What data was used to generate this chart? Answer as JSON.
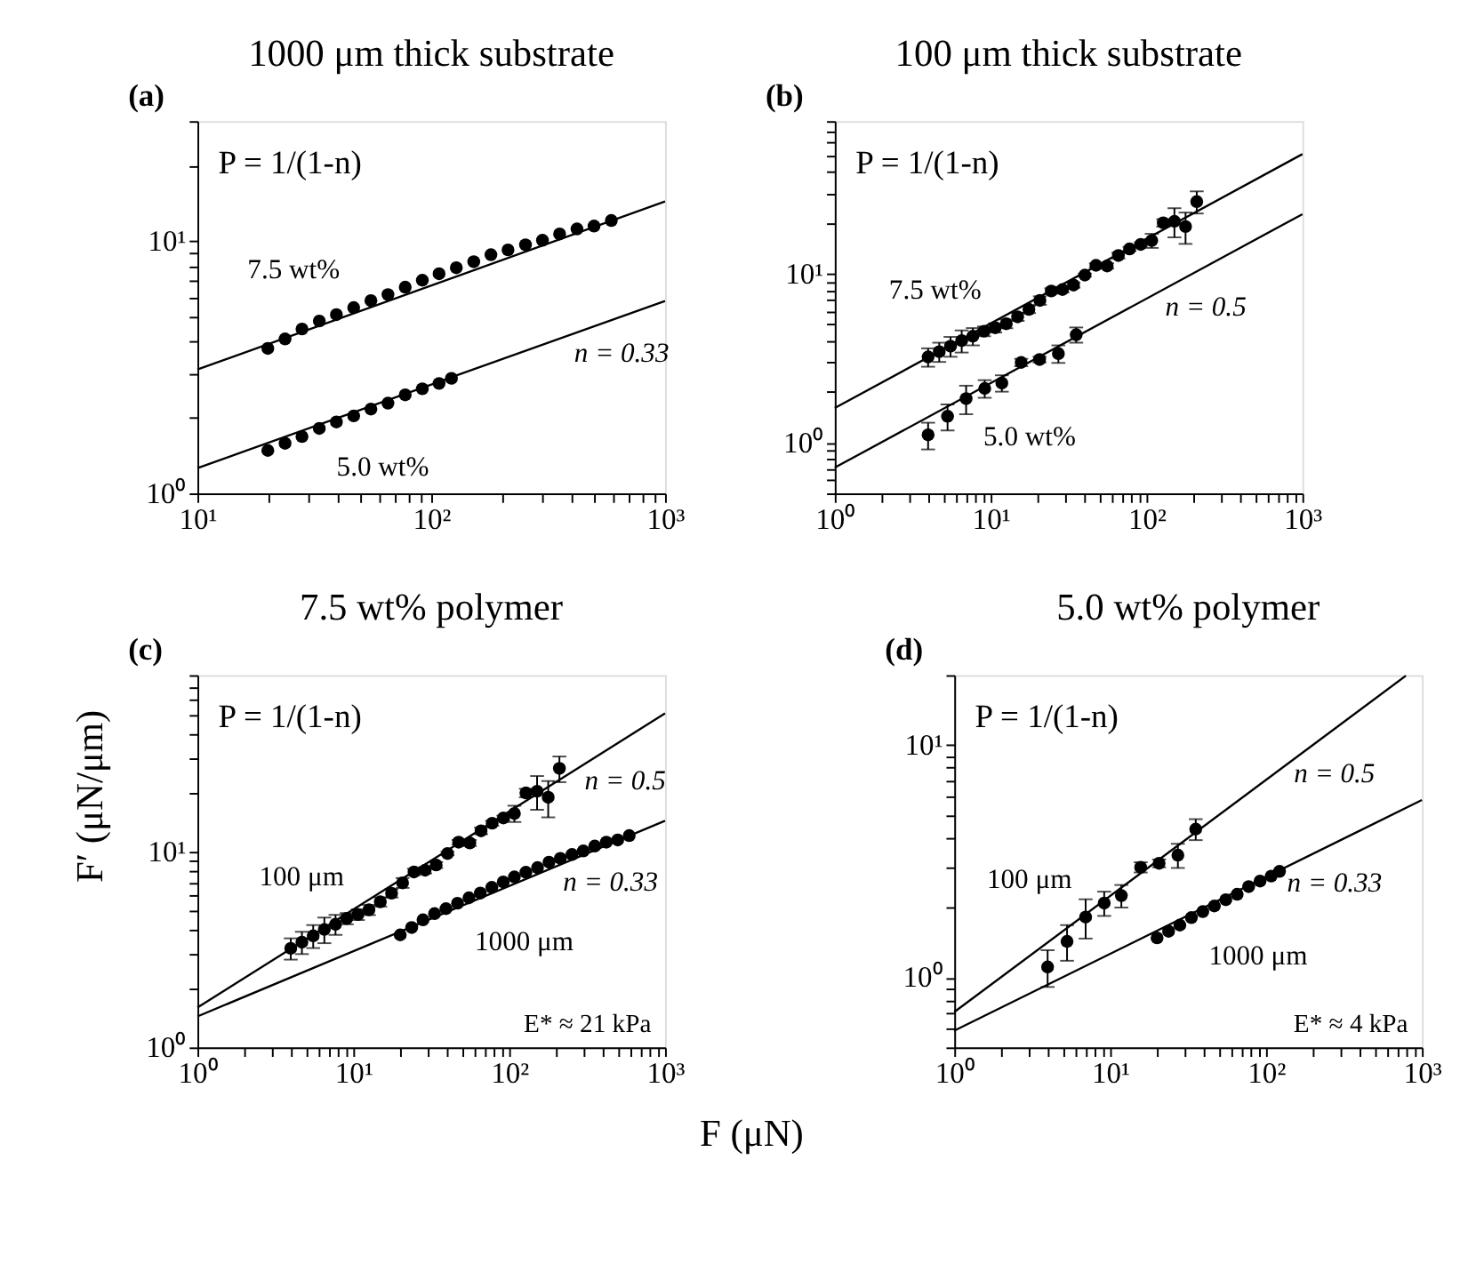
{
  "chart_data": [
    {
      "type": "scatter",
      "title": "1000 μm thick substrate",
      "log": "xy",
      "grid": false,
      "marker": "circle",
      "xlim": [
        10,
        1000
      ],
      "ylim": [
        1,
        30
      ],
      "xticks": [
        {
          "value": 10,
          "label": "10¹"
        },
        {
          "value": 20,
          "label": null
        },
        {
          "value": 30,
          "label": null
        },
        {
          "value": 40,
          "label": null
        },
        {
          "value": 50,
          "label": null
        },
        {
          "value": 60,
          "label": null
        },
        {
          "value": 70,
          "label": null
        },
        {
          "value": 80,
          "label": null
        },
        {
          "value": 90,
          "label": null
        },
        {
          "value": 100,
          "label": "10²"
        },
        {
          "value": 200,
          "label": null
        },
        {
          "value": 300,
          "label": null
        },
        {
          "value": 400,
          "label": null
        },
        {
          "value": 500,
          "label": null
        },
        {
          "value": 600,
          "label": null
        },
        {
          "value": 700,
          "label": null
        },
        {
          "value": 800,
          "label": null
        },
        {
          "value": 900,
          "label": null
        },
        {
          "value": 1000,
          "label": "10³"
        }
      ],
      "yticks": [
        {
          "value": 1,
          "label": "10⁰"
        },
        {
          "value": 2,
          "label": null
        },
        {
          "value": 3,
          "label": null
        },
        {
          "value": 4,
          "label": null
        },
        {
          "value": 5,
          "label": null
        },
        {
          "value": 6,
          "label": null
        },
        {
          "value": 7,
          "label": null
        },
        {
          "value": 8,
          "label": null
        },
        {
          "value": 9,
          "label": null
        },
        {
          "value": 10,
          "label": "10¹"
        },
        {
          "value": 20,
          "label": null
        },
        {
          "value": 30,
          "label": null
        }
      ],
      "series": [
        {
          "name": "7.5 wt%",
          "color": "#000000",
          "x": [
            20,
            23.7,
            28,
            33.2,
            39.3,
            46.6,
            55.2,
            65.3,
            77.4,
            91.6,
            108,
            128,
            152,
            180,
            213,
            253,
            299,
            354,
            420,
            497,
            589
          ],
          "values": [
            3.76,
            4.1,
            4.49,
            4.83,
            5.12,
            5.46,
            5.82,
            6.15,
            6.58,
            7.01,
            7.44,
            7.86,
            8.3,
            8.85,
            9.25,
            9.69,
            10.1,
            10.7,
            11.2,
            11.5,
            12.1
          ]
        },
        {
          "name": "5.0 wt%",
          "color": "#000000",
          "x": [
            20,
            23.7,
            28,
            33.2,
            39.3,
            46.6,
            55.2,
            65.3,
            77.4,
            91.6,
            108,
            122
          ],
          "values": [
            1.48,
            1.58,
            1.68,
            1.81,
            1.92,
            2.03,
            2.16,
            2.28,
            2.46,
            2.6,
            2.73,
            2.86
          ]
        },
        {
          "type": "line",
          "marker": "none",
          "color": "#000000",
          "line_style": "solid",
          "x": [
            10,
            1000
          ],
          "values": [
            3.1,
            14.4
          ]
        },
        {
          "type": "line",
          "marker": "none",
          "color": "#000000",
          "line_style": "solid",
          "x": [
            10,
            1000
          ],
          "values": [
            1.26,
            5.8
          ]
        }
      ],
      "annotations": [
        "(a)",
        "P = 1/(1-n)",
        {
          "text": "n = 0.33",
          "x": 550,
          "y": 4.77
        }
      ]
    },
    {
      "type": "scatter",
      "title": "100 μm thick substrate",
      "log": "xy",
      "grid": false,
      "marker": "circle",
      "xlim": [
        1,
        1000
      ],
      "ylim": [
        0.5,
        80
      ],
      "xticks": [
        {
          "value": 1,
          "label": "10⁰"
        },
        {
          "value": 2,
          "label": null
        },
        {
          "value": 3,
          "label": null
        },
        {
          "value": 4,
          "label": null
        },
        {
          "value": 5,
          "label": null
        },
        {
          "value": 6,
          "label": null
        },
        {
          "value": 7,
          "label": null
        },
        {
          "value": 8,
          "label": null
        },
        {
          "value": 9,
          "label": null
        },
        {
          "value": 10,
          "label": "10¹"
        },
        {
          "value": 20,
          "label": null
        },
        {
          "value": 30,
          "label": null
        },
        {
          "value": 40,
          "label": null
        },
        {
          "value": 50,
          "label": null
        },
        {
          "value": 60,
          "label": null
        },
        {
          "value": 70,
          "label": null
        },
        {
          "value": 80,
          "label": null
        },
        {
          "value": 90,
          "label": null
        },
        {
          "value": 100,
          "label": "10²"
        },
        {
          "value": 200,
          "label": null
        },
        {
          "value": 300,
          "label": null
        },
        {
          "value": 400,
          "label": null
        },
        {
          "value": 500,
          "label": null
        },
        {
          "value": 600,
          "label": null
        },
        {
          "value": 700,
          "label": null
        },
        {
          "value": 800,
          "label": null
        },
        {
          "value": 900,
          "label": null
        },
        {
          "value": 1000,
          "label": "10³"
        }
      ],
      "yticks": [
        {
          "value": 0.5,
          "label": null
        },
        {
          "value": 0.6,
          "label": null
        },
        {
          "value": 0.7,
          "label": null
        },
        {
          "value": 0.8,
          "label": null
        },
        {
          "value": 0.9,
          "label": null
        },
        {
          "value": 1,
          "label": "10⁰"
        },
        {
          "value": 2,
          "label": null
        },
        {
          "value": 3,
          "label": null
        },
        {
          "value": 4,
          "label": null
        },
        {
          "value": 5,
          "label": null
        },
        {
          "value": 6,
          "label": null
        },
        {
          "value": 7,
          "label": null
        },
        {
          "value": 8,
          "label": null
        },
        {
          "value": 9,
          "label": null
        },
        {
          "value": 10,
          "label": "10¹"
        },
        {
          "value": 20,
          "label": null
        },
        {
          "value": 30,
          "label": null
        },
        {
          "value": 40,
          "label": null
        },
        {
          "value": 50,
          "label": null
        },
        {
          "value": 60,
          "label": null
        },
        {
          "value": 70,
          "label": null
        },
        {
          "value": 80,
          "label": null
        }
      ],
      "series": [
        {
          "name": "7.5 wt%",
          "color": "#000000",
          "x": [
            3.97,
            4.68,
            5.53,
            6.52,
            7.69,
            9.07,
            10.7,
            12.6,
            14.9,
            17.6,
            20.7,
            24.5,
            28.9,
            34.0,
            40.2,
            47.4,
            55.9,
            66.0,
            77.8,
            91.8,
            108,
            128,
            151,
            178,
            210
          ],
          "values": [
            3.21,
            3.45,
            3.72,
            4.01,
            4.26,
            4.56,
            4.78,
            5.05,
            5.55,
            6.14,
            6.94,
            7.89,
            8.05,
            8.56,
            9.8,
            11.2,
            11.1,
            12.8,
            14.0,
            14.9,
            15.7,
            20.0,
            20.4,
            19.0,
            26.7
          ],
          "errors": [
            0.4,
            0.45,
            0.5,
            0.6,
            0.5,
            0.3,
            0.3,
            0.3,
            0.3,
            0.3,
            0.4,
            0.3,
            0.3,
            0.3,
            0.2,
            0.3,
            0.4,
            0.5,
            0.4,
            0.4,
            1.5,
            1.0,
            4.0,
            4.0,
            4.0
          ]
        },
        {
          "name": "5.0 wt%",
          "color": "#000000",
          "x": [
            3.97,
            5.29,
            6.96,
            9.16,
            11.8,
            15.7,
            20.6,
            27.2,
            35.4
          ],
          "values": [
            1.11,
            1.43,
            1.82,
            2.09,
            2.25,
            2.98,
            3.1,
            3.36,
            4.35
          ],
          "errors": [
            0.2,
            0.25,
            0.35,
            0.25,
            0.25,
            0.15,
            0.12,
            0.4,
            0.45
          ]
        },
        {
          "type": "line",
          "marker": "none",
          "color": "#000000",
          "line_style": "solid",
          "x": [
            1,
            1000
          ],
          "values": [
            1.6,
            51
          ]
        },
        {
          "type": "line",
          "marker": "none",
          "color": "#000000",
          "line_style": "solid",
          "x": [
            1,
            1000
          ],
          "values": [
            0.71,
            22.5
          ]
        }
      ],
      "annotations": [
        "(b)",
        "P = 1/(1-n)",
        {
          "text": "n = 0.5",
          "x": 186,
          "y": 9.68
        }
      ]
    },
    {
      "type": "scatter",
      "title": "7.5 wt% polymer",
      "xlabel": "F (μN)",
      "ylabel": "F′ (μN/μm)",
      "log": "xy",
      "grid": false,
      "marker": "circle",
      "xlim": [
        1,
        1000
      ],
      "ylim": [
        1,
        80
      ],
      "xticks": [
        {
          "value": 1,
          "label": "10⁰"
        },
        {
          "value": 2,
          "label": null
        },
        {
          "value": 3,
          "label": null
        },
        {
          "value": 4,
          "label": null
        },
        {
          "value": 5,
          "label": null
        },
        {
          "value": 6,
          "label": null
        },
        {
          "value": 7,
          "label": null
        },
        {
          "value": 8,
          "label": null
        },
        {
          "value": 9,
          "label": null
        },
        {
          "value": 10,
          "label": "10¹"
        },
        {
          "value": 20,
          "label": null
        },
        {
          "value": 30,
          "label": null
        },
        {
          "value": 40,
          "label": null
        },
        {
          "value": 50,
          "label": null
        },
        {
          "value": 60,
          "label": null
        },
        {
          "value": 70,
          "label": null
        },
        {
          "value": 80,
          "label": null
        },
        {
          "value": 90,
          "label": null
        },
        {
          "value": 100,
          "label": "10²"
        },
        {
          "value": 200,
          "label": null
        },
        {
          "value": 300,
          "label": null
        },
        {
          "value": 400,
          "label": null
        },
        {
          "value": 500,
          "label": null
        },
        {
          "value": 600,
          "label": null
        },
        {
          "value": 700,
          "label": null
        },
        {
          "value": 800,
          "label": null
        },
        {
          "value": 900,
          "label": null
        },
        {
          "value": 1000,
          "label": "10³"
        }
      ],
      "yticks": [
        {
          "value": 1,
          "label": "10⁰"
        },
        {
          "value": 2,
          "label": null
        },
        {
          "value": 3,
          "label": null
        },
        {
          "value": 4,
          "label": null
        },
        {
          "value": 5,
          "label": null
        },
        {
          "value": 6,
          "label": null
        },
        {
          "value": 7,
          "label": null
        },
        {
          "value": 8,
          "label": null
        },
        {
          "value": 9,
          "label": null
        },
        {
          "value": 10,
          "label": "10¹"
        },
        {
          "value": 20,
          "label": null
        },
        {
          "value": 30,
          "label": null
        },
        {
          "value": 40,
          "label": null
        },
        {
          "value": 50,
          "label": null
        },
        {
          "value": 60,
          "label": null
        },
        {
          "value": 70,
          "label": null
        },
        {
          "value": 80,
          "label": null
        }
      ],
      "series": [
        {
          "name": "100 μm",
          "color": "#000000",
          "x": [
            3.97,
            4.68,
            5.53,
            6.52,
            7.69,
            9.07,
            10.7,
            12.6,
            14.9,
            17.6,
            20.7,
            24.5,
            28.9,
            34.0,
            40.2,
            47.4,
            55.9,
            66.0,
            77.8,
            91.8,
            108,
            128,
            151,
            178,
            210
          ],
          "values": [
            3.21,
            3.45,
            3.72,
            4.01,
            4.26,
            4.56,
            4.78,
            5.05,
            5.55,
            6.14,
            6.94,
            7.89,
            8.05,
            8.56,
            9.8,
            11.2,
            11.1,
            12.8,
            14.0,
            14.9,
            15.7,
            20.0,
            20.4,
            19.0,
            26.7
          ],
          "errors": [
            0.4,
            0.45,
            0.5,
            0.6,
            0.5,
            0.3,
            0.3,
            0.3,
            0.3,
            0.3,
            0.4,
            0.3,
            0.3,
            0.3,
            0.2,
            0.3,
            0.4,
            0.5,
            0.4,
            0.4,
            1.5,
            1.0,
            4.0,
            4.0,
            4.0
          ]
        },
        {
          "name": "1000 μm",
          "color": "#000000",
          "x": [
            20,
            23.7,
            28,
            33.2,
            39.3,
            46.6,
            55.2,
            65.3,
            77.4,
            91.6,
            108,
            128,
            152,
            180,
            213,
            253,
            299,
            354,
            420,
            497,
            589
          ],
          "values": [
            3.76,
            4.1,
            4.49,
            4.83,
            5.12,
            5.46,
            5.82,
            6.15,
            6.58,
            7.01,
            7.44,
            7.86,
            8.3,
            8.85,
            9.25,
            9.69,
            10.1,
            10.7,
            11.2,
            11.5,
            12.1
          ]
        },
        {
          "type": "line",
          "marker": "none",
          "color": "#000000",
          "line_style": "solid",
          "x": [
            1,
            1000
          ],
          "values": [
            1.6,
            51
          ]
        },
        {
          "type": "line",
          "marker": "none",
          "color": "#000000",
          "line_style": "solid",
          "x": [
            1,
            1000
          ],
          "values": [
            1.44,
            14.4
          ]
        }
      ],
      "annotations": [
        "(c)",
        "P = 1/(1-n)",
        "E* ≈ 21 kPa",
        {
          "text": "n = 0.5",
          "x": 430,
          "y": 33.5
        },
        {
          "text": "n = 0.33",
          "x": 346,
          "y": 10.1
        }
      ]
    },
    {
      "type": "scatter",
      "title": "5.0 wt% polymer",
      "log": "xy",
      "grid": false,
      "marker": "circle",
      "xlim": [
        1,
        1000
      ],
      "ylim": [
        0.5,
        20
      ],
      "xticks": [
        {
          "value": 1,
          "label": "10⁰"
        },
        {
          "value": 2,
          "label": null
        },
        {
          "value": 3,
          "label": null
        },
        {
          "value": 4,
          "label": null
        },
        {
          "value": 5,
          "label": null
        },
        {
          "value": 6,
          "label": null
        },
        {
          "value": 7,
          "label": null
        },
        {
          "value": 8,
          "label": null
        },
        {
          "value": 9,
          "label": null
        },
        {
          "value": 10,
          "label": "10¹"
        },
        {
          "value": 20,
          "label": null
        },
        {
          "value": 30,
          "label": null
        },
        {
          "value": 40,
          "label": null
        },
        {
          "value": 50,
          "label": null
        },
        {
          "value": 60,
          "label": null
        },
        {
          "value": 70,
          "label": null
        },
        {
          "value": 80,
          "label": null
        },
        {
          "value": 90,
          "label": null
        },
        {
          "value": 100,
          "label": "10²"
        },
        {
          "value": 200,
          "label": null
        },
        {
          "value": 300,
          "label": null
        },
        {
          "value": 400,
          "label": null
        },
        {
          "value": 500,
          "label": null
        },
        {
          "value": 600,
          "label": null
        },
        {
          "value": 700,
          "label": null
        },
        {
          "value": 800,
          "label": null
        },
        {
          "value": 900,
          "label": null
        },
        {
          "value": 1000,
          "label": "10³"
        }
      ],
      "yticks": [
        {
          "value": 0.5,
          "label": null
        },
        {
          "value": 0.6,
          "label": null
        },
        {
          "value": 0.7,
          "label": null
        },
        {
          "value": 0.8,
          "label": null
        },
        {
          "value": 0.9,
          "label": null
        },
        {
          "value": 1,
          "label": "10⁰"
        },
        {
          "value": 2,
          "label": null
        },
        {
          "value": 3,
          "label": null
        },
        {
          "value": 4,
          "label": null
        },
        {
          "value": 5,
          "label": null
        },
        {
          "value": 6,
          "label": null
        },
        {
          "value": 7,
          "label": null
        },
        {
          "value": 8,
          "label": null
        },
        {
          "value": 9,
          "label": null
        },
        {
          "value": 10,
          "label": "10¹"
        },
        {
          "value": 20,
          "label": null
        }
      ],
      "series": [
        {
          "name": "100 μm",
          "color": "#000000",
          "x": [
            3.97,
            5.29,
            6.96,
            9.16,
            11.8,
            15.7,
            20.6,
            27.2,
            35.4
          ],
          "values": [
            1.11,
            1.43,
            1.82,
            2.09,
            2.25,
            2.98,
            3.1,
            3.36,
            4.35
          ],
          "errors": [
            0.2,
            0.25,
            0.35,
            0.25,
            0.25,
            0.15,
            0.12,
            0.4,
            0.45
          ]
        },
        {
          "name": "1000 μm",
          "color": "#000000",
          "x": [
            20,
            23.7,
            28,
            33.2,
            39.3,
            46.6,
            55.2,
            65.3,
            77.4,
            91.6,
            108,
            122
          ],
          "values": [
            1.48,
            1.58,
            1.68,
            1.81,
            1.92,
            2.03,
            2.16,
            2.28,
            2.46,
            2.6,
            2.73,
            2.86
          ]
        },
        {
          "type": "line",
          "marker": "none",
          "color": "#000000",
          "line_style": "solid",
          "x": [
            1,
            790
          ],
          "values": [
            0.71,
            19.9
          ]
        },
        {
          "type": "line",
          "marker": "none",
          "color": "#000000",
          "line_style": "solid",
          "x": [
            1,
            1000
          ],
          "values": [
            0.59,
            5.8
          ]
        }
      ],
      "annotations": [
        "(d)",
        "P = 1/(1-n)",
        "E* ≈ 4 kPa",
        {
          "text": "n = 0.5",
          "x": 213,
          "y": 10.3
        },
        {
          "text": "n = 0.33",
          "x": 213,
          "y": 3.48
        }
      ]
    }
  ]
}
